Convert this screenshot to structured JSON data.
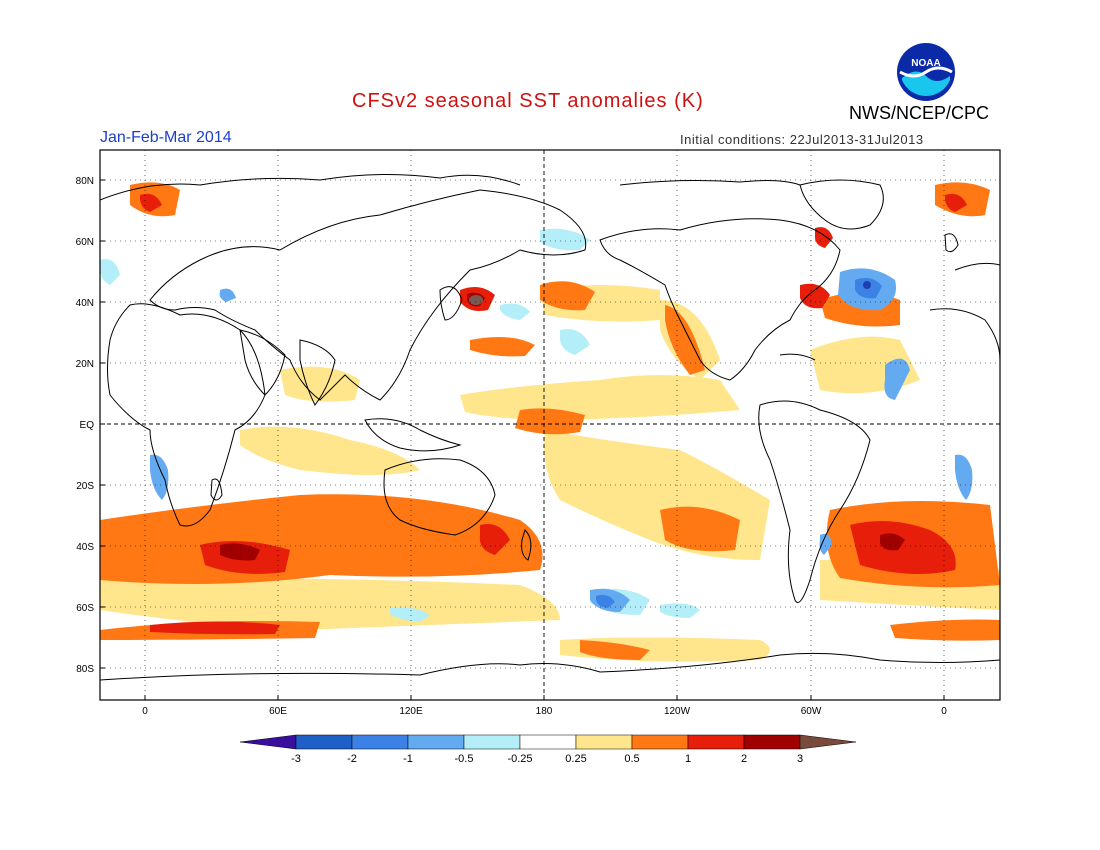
{
  "header": {
    "title": "CFSv2 seasonal SST anomalies (K)",
    "period": "Jan-Feb-Mar 2014",
    "initial_conditions": "Initial conditions: 22Jul2013-31Jul2013",
    "agency": "NWS/NCEP/CPC",
    "logo_text": "NOAA",
    "logo_icon": "noaa-logo-icon"
  },
  "map": {
    "lat_ticks": [
      "80N",
      "60N",
      "40N",
      "20N",
      "EQ",
      "20S",
      "40S",
      "60S",
      "80S"
    ],
    "lon_ticks": [
      "0",
      "60E",
      "120E",
      "180",
      "120W",
      "60W",
      "0"
    ],
    "reference_lines": [
      "EQ",
      "180"
    ]
  },
  "colorbar": {
    "labels": [
      "-3",
      "-2",
      "-1",
      "-0.5",
      "-0.25",
      "0.25",
      "0.5",
      "1",
      "2",
      "3"
    ],
    "colors": [
      "#3a0fa0",
      "#1e5fc8",
      "#3c82e6",
      "#64aaf0",
      "#b4eef8",
      "#ffffff",
      "#ffe68c",
      "#ff7814",
      "#e61e0a",
      "#a00000",
      "#7a4a3a"
    ]
  },
  "colors": {
    "land_outline": "#000000",
    "title": "#d01010",
    "period": "#1a3fd0"
  }
}
